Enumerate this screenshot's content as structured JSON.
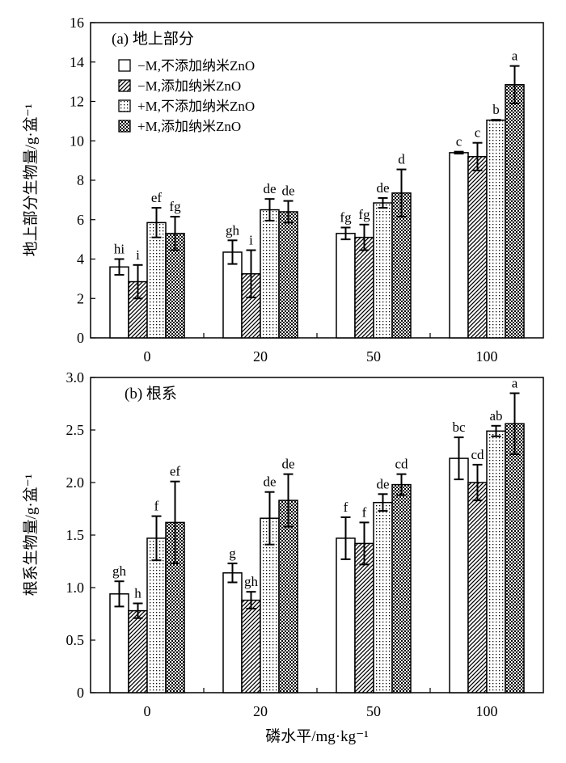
{
  "chart_data": [
    {
      "type": "bar",
      "title": "(a) 地上部分",
      "ylabel": "地上部分生物量/g·盆⁻¹",
      "xlabel": "",
      "ylim": [
        0,
        16
      ],
      "yticks": [
        0,
        2,
        4,
        6,
        8,
        10,
        12,
        14,
        16
      ],
      "categories": [
        "0",
        "20",
        "50",
        "100"
      ],
      "legend": "top-left",
      "series": [
        {
          "name": "−M,不添加纳米ZnO",
          "values": [
            3.6,
            4.35,
            5.3,
            9.4
          ],
          "errors": [
            0.4,
            0.6,
            0.3,
            0.05
          ],
          "labels": [
            "hi",
            "gh",
            "fg",
            "c"
          ]
        },
        {
          "name": "−M,添加纳米ZnO",
          "values": [
            2.85,
            3.25,
            5.1,
            9.2
          ],
          "errors": [
            0.85,
            1.2,
            0.65,
            0.7
          ],
          "labels": [
            "i",
            "i",
            "fg",
            "c"
          ]
        },
        {
          "name": "+M,不添加纳米ZnO",
          "values": [
            5.85,
            6.5,
            6.85,
            11.05
          ],
          "errors": [
            0.75,
            0.55,
            0.25,
            0.02
          ],
          "labels": [
            "ef",
            "de",
            "de",
            "b"
          ]
        },
        {
          "name": "+M,添加纳米ZnO",
          "values": [
            5.3,
            6.4,
            7.35,
            12.85
          ],
          "errors": [
            0.85,
            0.55,
            1.2,
            0.95
          ],
          "labels": [
            "fg",
            "de",
            "d",
            "a"
          ]
        }
      ]
    },
    {
      "type": "bar",
      "title": "(b) 根系",
      "ylabel": "根系生物量/g·盆⁻¹",
      "xlabel": "磷水平/mg·kg⁻¹",
      "ylim": [
        0,
        3.0
      ],
      "yticks": [
        "0",
        "0.5",
        "1.0",
        "1.5",
        "2.0",
        "2.5",
        "3.0"
      ],
      "categories": [
        "0",
        "20",
        "50",
        "100"
      ],
      "series": [
        {
          "name": "−M,不添加纳米ZnO",
          "values": [
            0.94,
            1.14,
            1.47,
            2.23
          ],
          "errors": [
            0.12,
            0.09,
            0.2,
            0.2
          ],
          "labels": [
            "gh",
            "g",
            "f",
            "bc"
          ]
        },
        {
          "name": "−M,添加纳米ZnO",
          "values": [
            0.78,
            0.88,
            1.42,
            2.0
          ],
          "errors": [
            0.07,
            0.08,
            0.2,
            0.17
          ],
          "labels": [
            "h",
            "gh",
            "f",
            "cd"
          ]
        },
        {
          "name": "+M,不添加纳米ZnO",
          "values": [
            1.47,
            1.66,
            1.81,
            2.49
          ],
          "errors": [
            0.21,
            0.25,
            0.08,
            0.05
          ],
          "labels": [
            "f",
            "de",
            "de",
            "ab"
          ]
        },
        {
          "name": "+M,添加纳米ZnO",
          "values": [
            1.62,
            1.83,
            1.98,
            2.56
          ],
          "errors": [
            0.39,
            0.25,
            0.1,
            0.29
          ],
          "labels": [
            "ef",
            "de",
            "cd",
            "a"
          ]
        }
      ]
    }
  ]
}
